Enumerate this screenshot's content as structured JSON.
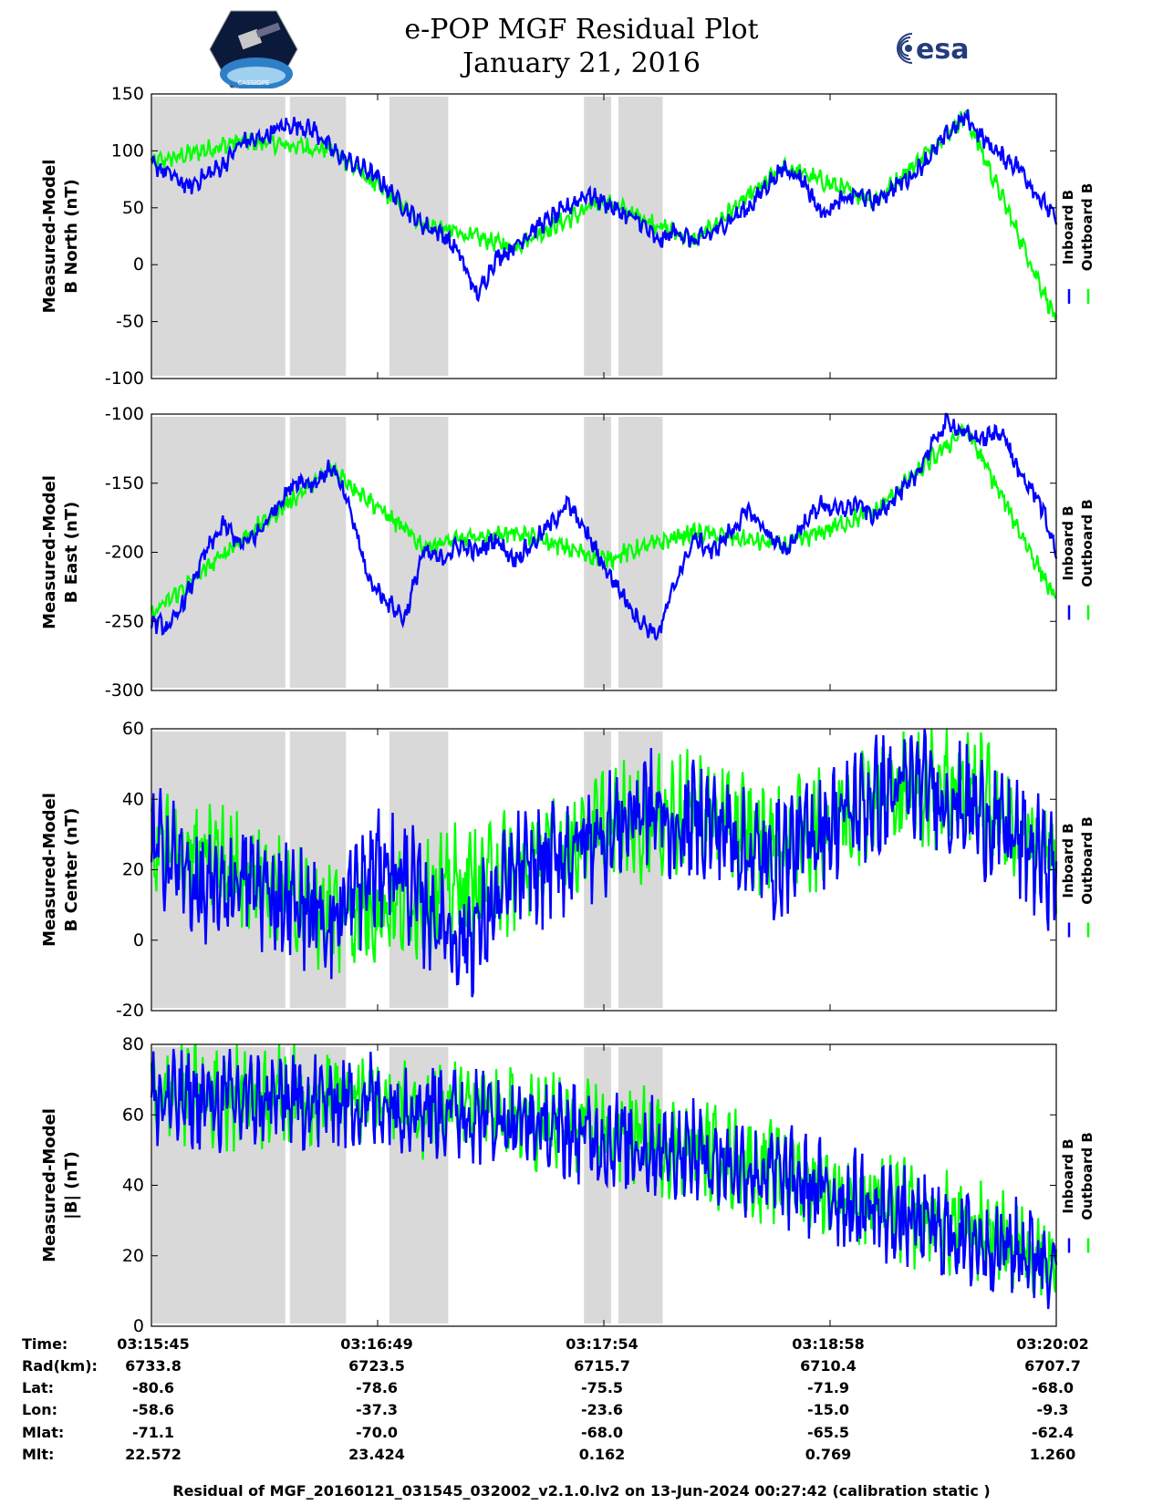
{
  "header": {
    "title_line1": "e-POP MGF Residual Plot",
    "title_line2": "January 21, 2016",
    "left_logo_text": "CASSIOPE",
    "right_logo_text": "esa"
  },
  "colors": {
    "inboard": "#0000ff",
    "outboard": "#00ff00",
    "shade": "#d9d9d9"
  },
  "chart_data": [
    {
      "type": "line",
      "ylabel": [
        "Measured-Model",
        "B North (nT)"
      ],
      "ylim": [
        -100,
        150
      ],
      "yticks": [
        150,
        100,
        50,
        0,
        -50,
        -100
      ],
      "legend": [
        "Inboard B",
        "Outboard B"
      ],
      "series": [
        {
          "name": "Inboard B",
          "band": 6,
          "x": [
            0,
            2,
            4,
            6,
            8,
            10,
            12,
            14,
            16,
            18,
            20,
            22,
            24,
            26,
            28,
            30,
            32,
            34,
            36,
            38,
            40,
            42,
            44,
            46,
            48,
            50,
            52,
            54,
            56,
            58,
            60,
            62,
            64,
            66,
            68,
            70,
            72,
            74,
            76,
            78,
            80,
            82,
            84,
            86,
            88,
            90,
            92,
            94,
            96,
            98,
            100
          ],
          "values": [
            88,
            80,
            68,
            78,
            88,
            108,
            110,
            120,
            123,
            118,
            100,
            90,
            82,
            68,
            50,
            35,
            28,
            10,
            -28,
            5,
            15,
            30,
            40,
            50,
            62,
            55,
            45,
            38,
            20,
            30,
            20,
            28,
            40,
            50,
            70,
            85,
            75,
            45,
            55,
            62,
            55,
            68,
            78,
            95,
            115,
            130,
            110,
            95,
            85,
            60,
            40
          ]
        },
        {
          "name": "Outboard B",
          "band": 6,
          "x": [
            0,
            10,
            20,
            30,
            40,
            50,
            60,
            70,
            80,
            90,
            100
          ],
          "values": [
            88,
            108,
            100,
            35,
            15,
            55,
            20,
            85,
            55,
            130,
            -50
          ]
        }
      ]
    },
    {
      "type": "line",
      "ylabel": [
        "Measured-Model",
        "B East (nT)"
      ],
      "ylim": [
        -300,
        -100
      ],
      "yticks": [
        -100,
        -150,
        -200,
        -250,
        -300
      ],
      "legend": [
        "Inboard B",
        "Outboard B"
      ],
      "series": [
        {
          "name": "Inboard B",
          "band": 5,
          "x": [
            0,
            2,
            4,
            6,
            8,
            10,
            12,
            14,
            16,
            18,
            20,
            22,
            24,
            26,
            28,
            30,
            32,
            34,
            36,
            38,
            40,
            42,
            44,
            46,
            48,
            50,
            52,
            54,
            56,
            58,
            60,
            62,
            64,
            66,
            68,
            70,
            72,
            74,
            76,
            78,
            80,
            82,
            84,
            86,
            88,
            90,
            92,
            94,
            96,
            98,
            100
          ],
          "values": [
            -250,
            -255,
            -230,
            -200,
            -180,
            -195,
            -185,
            -165,
            -148,
            -150,
            -138,
            -170,
            -220,
            -235,
            -248,
            -200,
            -205,
            -195,
            -200,
            -190,
            -205,
            -195,
            -180,
            -165,
            -185,
            -210,
            -230,
            -250,
            -260,
            -220,
            -190,
            -200,
            -185,
            -170,
            -185,
            -200,
            -180,
            -165,
            -170,
            -165,
            -175,
            -160,
            -150,
            -125,
            -105,
            -115,
            -118,
            -112,
            -145,
            -160,
            -200
          ]
        },
        {
          "name": "Outboard B",
          "band": 5,
          "x": [
            0,
            10,
            20,
            30,
            40,
            50,
            60,
            70,
            80,
            90,
            100
          ],
          "values": [
            -246,
            -191,
            -140,
            -196,
            -186,
            -206,
            -186,
            -196,
            -171,
            -111,
            -236
          ]
        }
      ]
    },
    {
      "type": "line",
      "ylabel": [
        "Measured-Model",
        "B Center (nT)"
      ],
      "ylim": [
        -20,
        60
      ],
      "yticks": [
        60,
        40,
        20,
        0,
        -20
      ],
      "legend": [
        "Inboard B",
        "Outboard B"
      ],
      "series": [
        {
          "name": "Inboard B",
          "band": 12,
          "x": [
            0,
            2,
            4,
            6,
            8,
            10,
            12,
            14,
            16,
            18,
            20,
            22,
            24,
            26,
            28,
            30,
            32,
            34,
            36,
            38,
            40,
            42,
            44,
            46,
            48,
            50,
            52,
            54,
            56,
            58,
            60,
            62,
            64,
            66,
            68,
            70,
            72,
            74,
            76,
            78,
            80,
            82,
            84,
            86,
            88,
            90,
            92,
            94,
            96,
            98,
            100
          ],
          "values": [
            25,
            25,
            18,
            12,
            14,
            18,
            15,
            12,
            10,
            8,
            5,
            12,
            18,
            22,
            18,
            10,
            5,
            0,
            3,
            10,
            18,
            20,
            22,
            25,
            28,
            30,
            33,
            38,
            36,
            30,
            35,
            33,
            30,
            25,
            22,
            25,
            28,
            32,
            35,
            38,
            40,
            42,
            44,
            43,
            40,
            38,
            35,
            32,
            28,
            24,
            20
          ]
        },
        {
          "name": "Outboard B",
          "band": 12,
          "x": [
            0,
            10,
            20,
            30,
            40,
            50,
            60,
            70,
            80,
            90,
            100
          ],
          "values": [
            25,
            18,
            5,
            10,
            18,
            30,
            35,
            25,
            40,
            43,
            20
          ]
        }
      ]
    },
    {
      "type": "line",
      "ylabel": [
        "Measured-Model",
        "|B| (nT)"
      ],
      "ylim": [
        0,
        80
      ],
      "yticks": [
        80,
        60,
        40,
        20,
        0
      ],
      "legend": [
        "Inboard B",
        "Outboard B"
      ],
      "series": [
        {
          "name": "Inboard B",
          "band": 10,
          "x": [
            0,
            10,
            20,
            30,
            40,
            50,
            60,
            70,
            80,
            90,
            100
          ],
          "values": [
            64,
            64,
            64,
            63,
            58,
            53,
            49,
            42,
            33,
            25,
            19
          ]
        },
        {
          "name": "Outboard B",
          "band": 10,
          "x": [
            0,
            20,
            40,
            60,
            80,
            100
          ],
          "values": [
            64,
            64,
            58,
            49,
            33,
            19
          ]
        }
      ]
    }
  ],
  "shaded_intervals": [
    [
      0,
      14.8
    ],
    [
      15.2,
      21.5
    ],
    [
      26.2,
      32.8
    ],
    [
      47.7,
      50.8
    ],
    [
      51.5,
      56.5
    ]
  ],
  "info_table": {
    "labels": [
      "Time:",
      "Rad(km):",
      "Lat:",
      "Lon:",
      "Mlat:",
      "Mlt:"
    ],
    "columns": [
      {
        "Time": "03:15:45",
        "Rad": "6733.8",
        "Lat": "-80.6",
        "Lon": "-58.6",
        "Mlat": "-71.1",
        "Mlt": "22.572"
      },
      {
        "Time": "03:16:49",
        "Rad": "6723.5",
        "Lat": "-78.6",
        "Lon": "-37.3",
        "Mlat": "-70.0",
        "Mlt": "23.424"
      },
      {
        "Time": "03:17:54",
        "Rad": "6715.7",
        "Lat": "-75.5",
        "Lon": "-23.6",
        "Mlat": "-68.0",
        "Mlt": "0.162"
      },
      {
        "Time": "03:18:58",
        "Rad": "6710.4",
        "Lat": "-71.9",
        "Lon": "-15.0",
        "Mlat": "-65.5",
        "Mlt": "0.769"
      },
      {
        "Time": "03:20:02",
        "Rad": "6707.7",
        "Lat": "-68.0",
        "Lon": "-9.3",
        "Mlat": "-62.4",
        "Mlt": "1.260"
      }
    ]
  },
  "footer": "Residual of MGF_20160121_031545_032002_v2.1.0.lv2 on 13-Jun-2024 00:27:42 (calibration static )"
}
